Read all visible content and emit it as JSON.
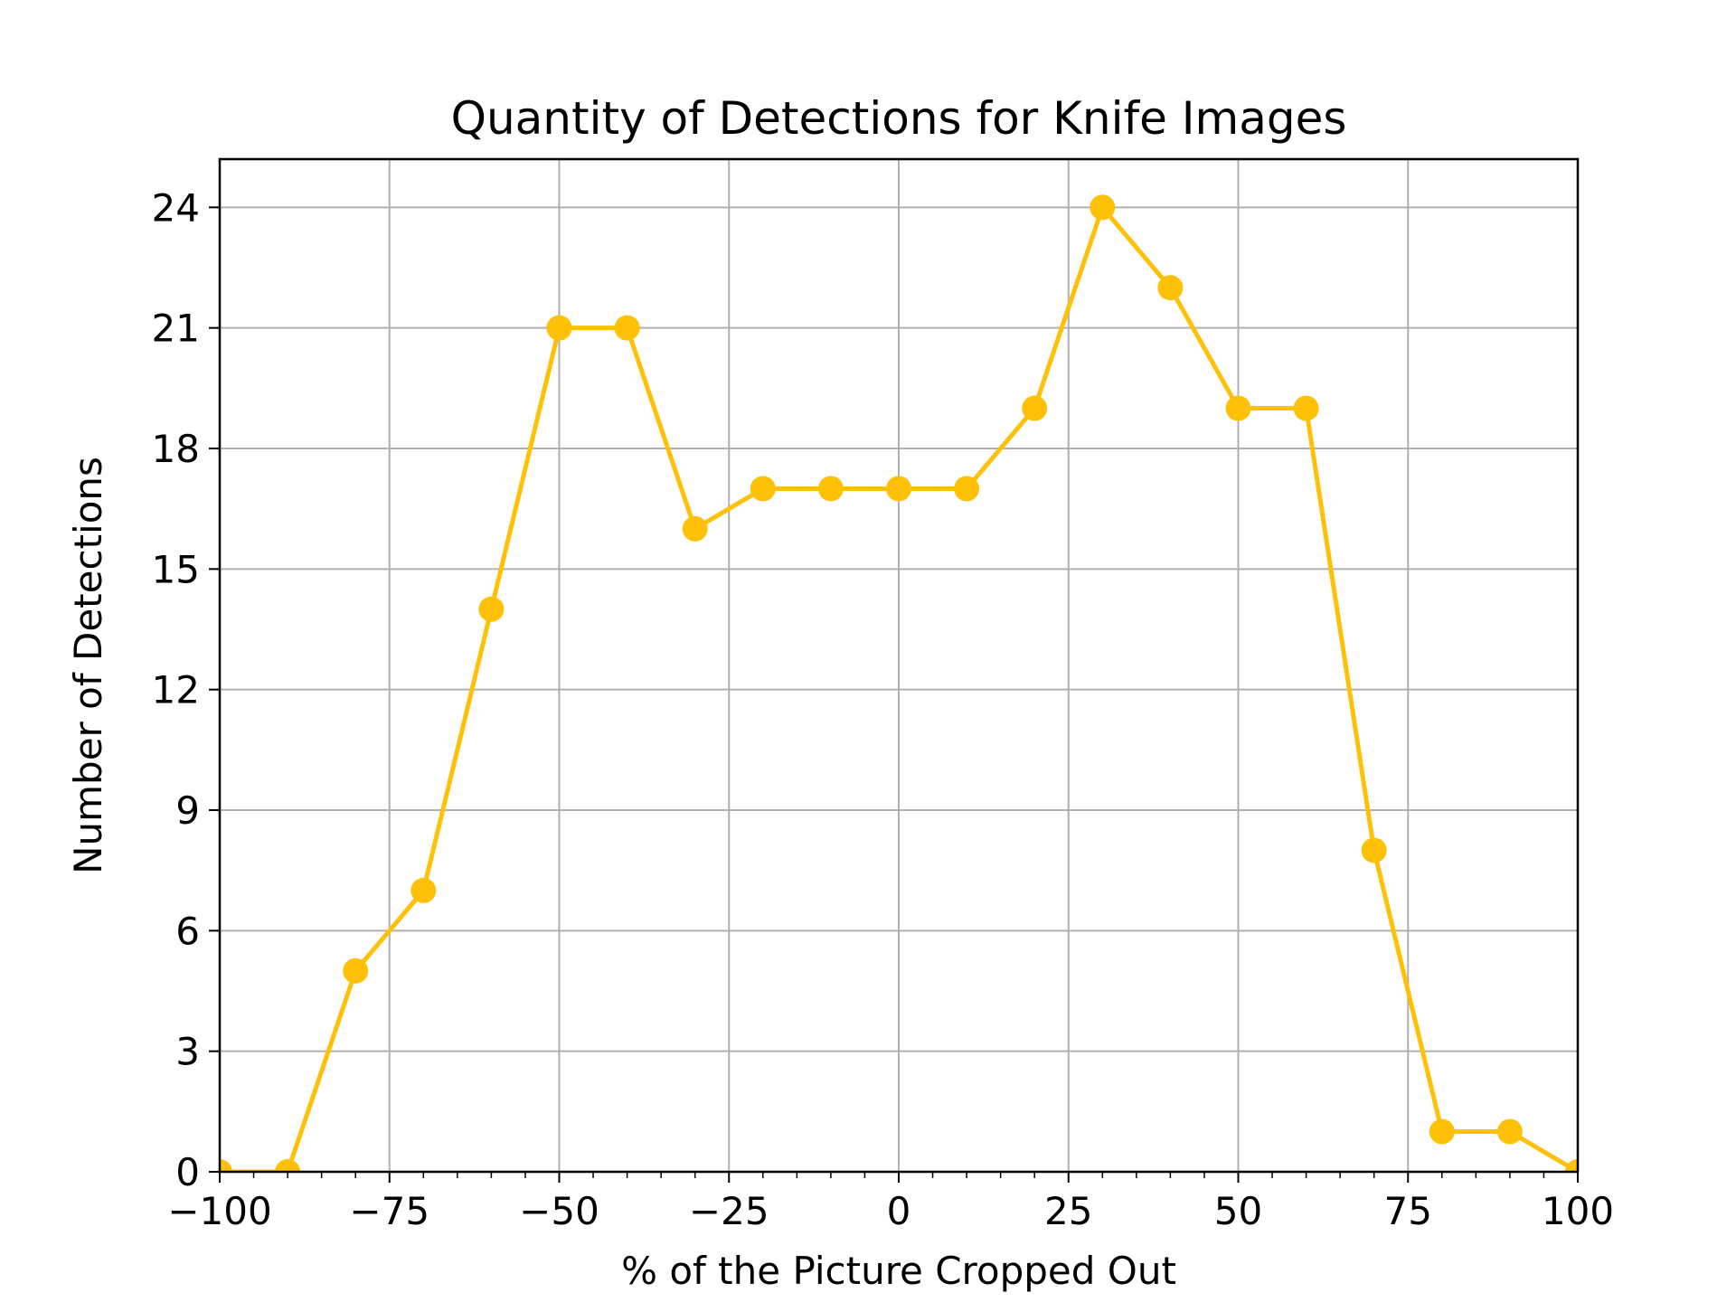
{
  "chart_data": {
    "type": "line",
    "title": "Quantity of Detections for Knife Images",
    "xlabel": "% of the Picture Cropped Out",
    "ylabel": "Number of Detections",
    "xlim": [
      -100,
      100
    ],
    "ylim": [
      0,
      25.2
    ],
    "grid": true,
    "x_ticks": [
      -100,
      -75,
      -50,
      -25,
      0,
      25,
      50,
      75,
      100
    ],
    "x_tick_labels": [
      "−100",
      "−75",
      "−50",
      "−25",
      "0",
      "25",
      "50",
      "75",
      "100"
    ],
    "y_ticks": [
      0,
      3,
      6,
      9,
      12,
      15,
      18,
      21,
      24
    ],
    "y_tick_labels": [
      "0",
      "3",
      "6",
      "9",
      "12",
      "15",
      "18",
      "21",
      "24"
    ],
    "series": [
      {
        "color": "#FFC107",
        "x": [
          -100,
          -90,
          -80,
          -70,
          -60,
          -50,
          -40,
          -30,
          -20,
          -10,
          0,
          10,
          20,
          30,
          40,
          50,
          60,
          70,
          80,
          90,
          100
        ],
        "y": [
          0,
          0,
          5,
          7,
          14,
          21,
          21,
          16,
          17,
          17,
          17,
          17,
          19,
          24,
          22,
          19,
          19,
          8,
          1,
          1,
          0
        ]
      }
    ]
  }
}
